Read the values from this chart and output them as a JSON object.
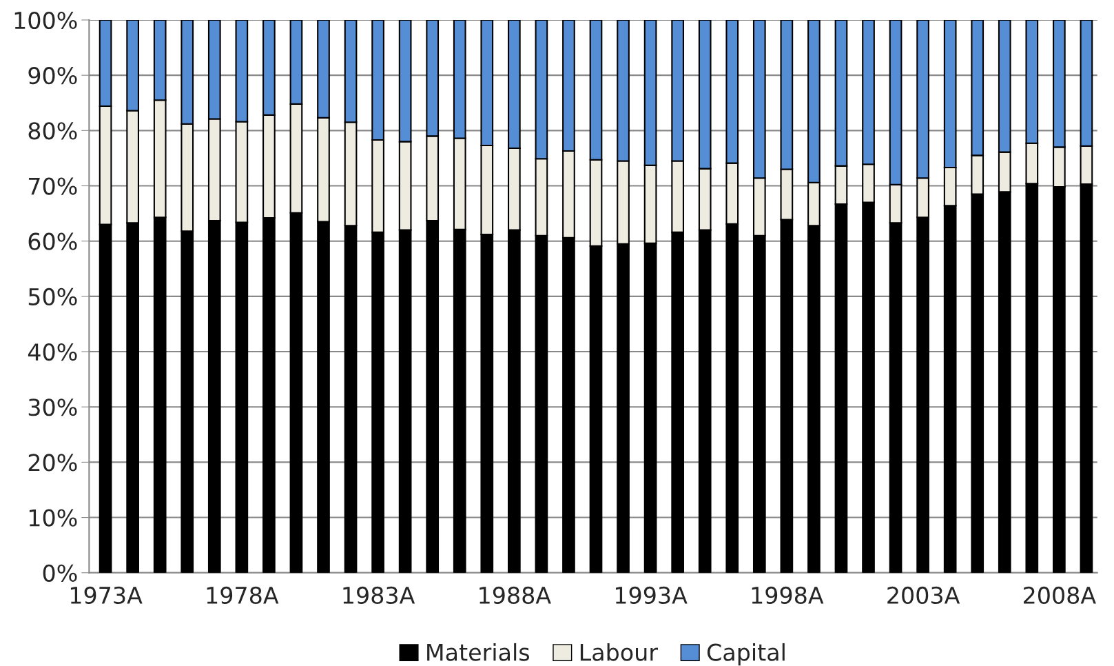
{
  "chart_data": {
    "type": "bar",
    "stacked": true,
    "categories": [
      "1973A",
      null,
      null,
      null,
      null,
      "1978A",
      null,
      null,
      null,
      null,
      "1983A",
      null,
      null,
      null,
      null,
      "1988A",
      null,
      null,
      null,
      null,
      "1993A",
      null,
      null,
      null,
      null,
      "1998A",
      null,
      null,
      null,
      null,
      "2003A",
      null,
      null,
      null,
      null,
      "2008A",
      null
    ],
    "series": [
      {
        "name": "Materials",
        "color": "#000000",
        "values": [
          63.0,
          63.3,
          64.3,
          61.8,
          63.7,
          63.4,
          64.2,
          65.1,
          63.5,
          62.8,
          61.6,
          62.0,
          63.7,
          62.1,
          61.2,
          62.0,
          61.0,
          60.6,
          59.1,
          59.5,
          59.6,
          61.6,
          62.0,
          63.1,
          61.0,
          63.9,
          62.8,
          66.7,
          67.0,
          63.3,
          64.3,
          66.4,
          68.5,
          68.9,
          70.4,
          69.8,
          70.3
        ]
      },
      {
        "name": "Labour",
        "color": "#eeebe0",
        "values": [
          21.4,
          20.3,
          21.2,
          19.4,
          18.4,
          18.2,
          18.6,
          19.7,
          18.8,
          18.7,
          16.7,
          16.0,
          15.3,
          16.5,
          16.1,
          14.8,
          13.9,
          15.7,
          15.6,
          15.0,
          14.1,
          12.9,
          11.1,
          11.0,
          10.4,
          9.1,
          7.8,
          6.9,
          6.9,
          6.9,
          7.1,
          6.9,
          7.0,
          7.2,
          7.3,
          7.2,
          6.9
        ]
      },
      {
        "name": "Capital",
        "color": "#558ed5",
        "values": [
          15.6,
          16.4,
          14.5,
          18.8,
          17.9,
          18.4,
          17.2,
          15.2,
          17.7,
          18.5,
          21.7,
          22.0,
          21.0,
          21.4,
          22.7,
          23.2,
          25.1,
          23.7,
          25.3,
          25.5,
          26.3,
          25.5,
          26.9,
          25.9,
          28.6,
          27.0,
          29.4,
          26.4,
          26.1,
          29.8,
          28.6,
          26.7,
          24.5,
          23.9,
          22.3,
          23.0,
          22.8
        ]
      }
    ],
    "ylim": [
      0,
      100
    ],
    "yticks": [
      {
        "value": 0,
        "label": "0%"
      },
      {
        "value": 10,
        "label": "10%"
      },
      {
        "value": 20,
        "label": "20%"
      },
      {
        "value": 30,
        "label": "30%"
      },
      {
        "value": 40,
        "label": "40%"
      },
      {
        "value": 50,
        "label": "50%"
      },
      {
        "value": 60,
        "label": "60%"
      },
      {
        "value": 70,
        "label": "70%"
      },
      {
        "value": 80,
        "label": "80%"
      },
      {
        "value": 90,
        "label": "90%"
      },
      {
        "value": 100,
        "label": "100%"
      }
    ],
    "grid": "y",
    "legend": "bottom"
  }
}
